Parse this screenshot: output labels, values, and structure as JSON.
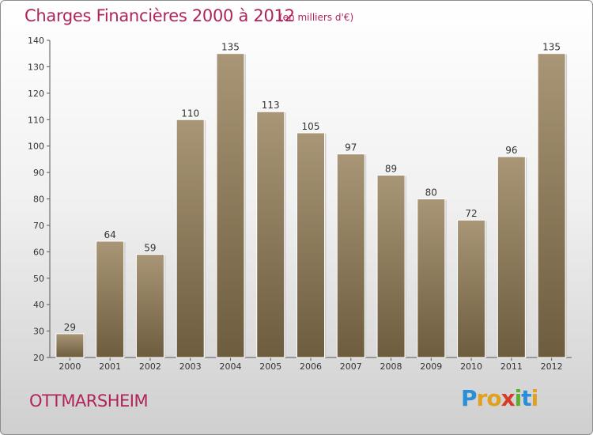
{
  "header": {
    "title": "Charges Financières 2000 à 2012",
    "subtitle": "(en milliers d'€)"
  },
  "footer": {
    "city": "OTTMARSHEIM",
    "logo_text": "Proxiti"
  },
  "colors": {
    "accent": "#b0245c",
    "bar_top": "#a89677",
    "bar_bottom": "#6e5c3e"
  },
  "chart_data": {
    "type": "bar",
    "title": "Charges Financières 2000 à 2012",
    "subtitle": "(en milliers d'€)",
    "xlabel": "",
    "ylabel": "",
    "categories": [
      "2000",
      "2001",
      "2002",
      "2003",
      "2004",
      "2005",
      "2006",
      "2007",
      "2008",
      "2009",
      "2010",
      "2011",
      "2012"
    ],
    "values": [
      29,
      64,
      59,
      110,
      135,
      113,
      105,
      97,
      89,
      80,
      72,
      96,
      135
    ],
    "ylim": [
      20,
      140
    ],
    "yticks": [
      20,
      30,
      40,
      50,
      60,
      70,
      80,
      90,
      100,
      110,
      120,
      130,
      140
    ],
    "grid": false,
    "data_labels": true
  }
}
